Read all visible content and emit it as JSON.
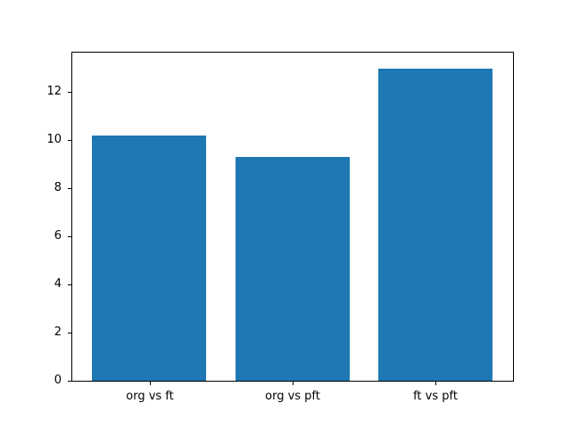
{
  "chart_data": {
    "type": "bar",
    "categories": [
      "org vs ft",
      "org vs pft",
      "ft vs pft"
    ],
    "values": [
      10.2,
      9.3,
      13.0
    ],
    "title": "",
    "xlabel": "",
    "ylabel": "",
    "ylim": [
      0,
      13.65
    ],
    "yticks": [
      0,
      2,
      4,
      6,
      8,
      10,
      12
    ],
    "bar_width_fraction": 0.8,
    "grid": false,
    "legend": null,
    "bar_color": "#1f77b4",
    "spine_color": "#000000",
    "tick_color": "#000000",
    "background_color": "#ffffff"
  }
}
